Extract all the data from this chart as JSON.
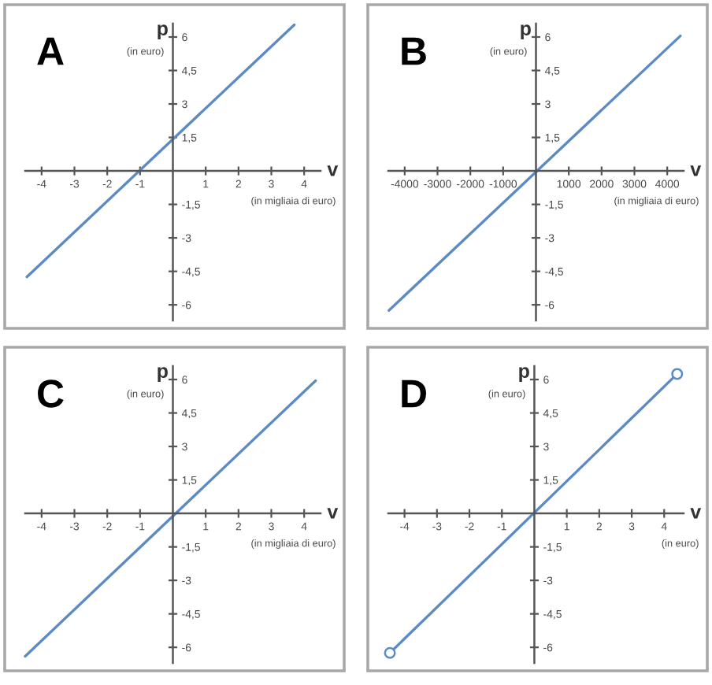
{
  "chart_data": [
    {
      "type": "line",
      "title": "A",
      "xlabel": "v",
      "ylabel": "p",
      "annotations": [
        "(in euro)",
        "(in migliaia di euro)"
      ],
      "xlim": [
        -4.5,
        4.5
      ],
      "ylim": [
        -6.7,
        6.6
      ],
      "xticks": [
        -4,
        -3,
        -2,
        -1,
        1,
        2,
        3,
        4
      ],
      "yticks": [
        -6,
        {
          "value": -4.5,
          "label": "-4,5"
        },
        -3,
        {
          "value": -1.5,
          "label": "-1,5"
        },
        {
          "value": 1.5,
          "label": "1,5"
        },
        3,
        {
          "value": 4.5,
          "label": "4,5"
        },
        6
      ],
      "series": [
        {
          "color": "#5b8ac4",
          "x": [
            -4.45,
            3.7
          ],
          "values": [
            -4.75,
            6.55
          ]
        }
      ]
    },
    {
      "type": "line",
      "title": "B",
      "xlabel": "v",
      "ylabel": "p",
      "annotations": [
        "(in euro)",
        "(in migliaia di euro)"
      ],
      "xlim": [
        -4500,
        4500
      ],
      "ylim": [
        -6.7,
        6.6
      ],
      "xticks": [
        -4000,
        -3000,
        -2000,
        -1000,
        1000,
        2000,
        3000,
        4000
      ],
      "yticks": [
        -6,
        {
          "value": -4.5,
          "label": "-4,5"
        },
        -3,
        {
          "value": -1.5,
          "label": "-1,5"
        },
        {
          "value": 1.5,
          "label": "1,5"
        },
        3,
        {
          "value": 4.5,
          "label": "4,5"
        },
        6
      ],
      "series": [
        {
          "color": "#5b8ac4",
          "x": [
            -4480,
            4400
          ],
          "values": [
            -6.25,
            6.05
          ]
        }
      ]
    },
    {
      "type": "line",
      "title": "C",
      "xlabel": "v",
      "ylabel": "p",
      "annotations": [
        "(in euro)",
        "(in migliaia di euro)"
      ],
      "xlim": [
        -4.5,
        4.5
      ],
      "ylim": [
        -6.7,
        6.6
      ],
      "xticks": [
        -4,
        -3,
        -2,
        -1,
        1,
        2,
        3,
        4
      ],
      "yticks": [
        -6,
        {
          "value": -4.5,
          "label": "-4,5"
        },
        -3,
        {
          "value": -1.5,
          "label": "-1,5"
        },
        {
          "value": 1.5,
          "label": "1,5"
        },
        3,
        {
          "value": 4.5,
          "label": "4,5"
        },
        6
      ],
      "series": [
        {
          "color": "#5b8ac4",
          "x": [
            -4.5,
            4.35
          ],
          "values": [
            -6.4,
            5.95
          ]
        }
      ]
    },
    {
      "type": "line",
      "title": "D",
      "xlabel": "v",
      "ylabel": "p",
      "annotations": [
        "(in euro)",
        "(in euro)"
      ],
      "xlim": [
        -4.5,
        4.6
      ],
      "ylim": [
        -6.7,
        6.6
      ],
      "xticks": [
        -4,
        -3,
        -2,
        -1,
        1,
        2,
        3,
        4
      ],
      "yticks": [
        -6,
        {
          "value": -4.5,
          "label": "-4,5"
        },
        -3,
        {
          "value": -1.5,
          "label": "-1,5"
        },
        {
          "value": 1.5,
          "label": "1,5"
        },
        3,
        {
          "value": 4.5,
          "label": "4,5"
        },
        6
      ],
      "marker": "circle",
      "series": [
        {
          "color": "#5b8ac4",
          "x": [
            -4.45,
            4.4
          ],
          "values": [
            -6.25,
            6.25
          ]
        }
      ]
    }
  ]
}
